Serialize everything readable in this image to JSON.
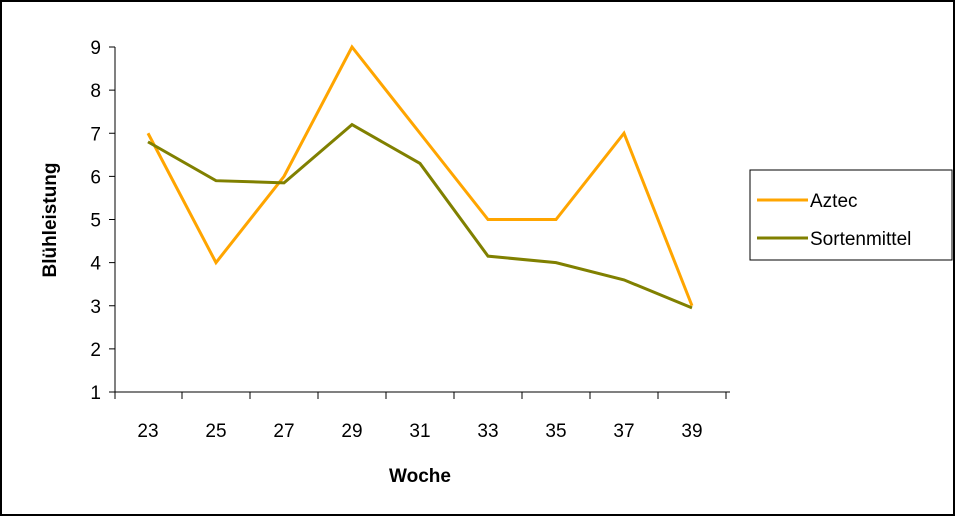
{
  "chart_data": {
    "type": "line",
    "x": [
      23,
      25,
      27,
      29,
      31,
      33,
      35,
      37,
      39
    ],
    "x_tick_labels": [
      "23",
      "25",
      "27",
      "29",
      "31",
      "33",
      "35",
      "37",
      "39"
    ],
    "xlabel": "Woche",
    "ylabel": "Blühleistung",
    "ylim": [
      1,
      9
    ],
    "y_ticks": [
      1,
      2,
      3,
      4,
      5,
      6,
      7,
      8,
      9
    ],
    "y_tick_labels": [
      "1",
      "2",
      "3",
      "4",
      "5",
      "6",
      "7",
      "8",
      "9"
    ],
    "grid": false,
    "legend_position": "right",
    "series": [
      {
        "name": "Aztec",
        "color": "#FFA500",
        "values": [
          7,
          4,
          6,
          9,
          7,
          5,
          5,
          7,
          3
        ]
      },
      {
        "name": "Sortenmittel",
        "color": "#808000",
        "values": [
          6.8,
          5.9,
          5.85,
          7.2,
          6.3,
          4.15,
          4.0,
          3.6,
          2.95
        ]
      }
    ]
  }
}
